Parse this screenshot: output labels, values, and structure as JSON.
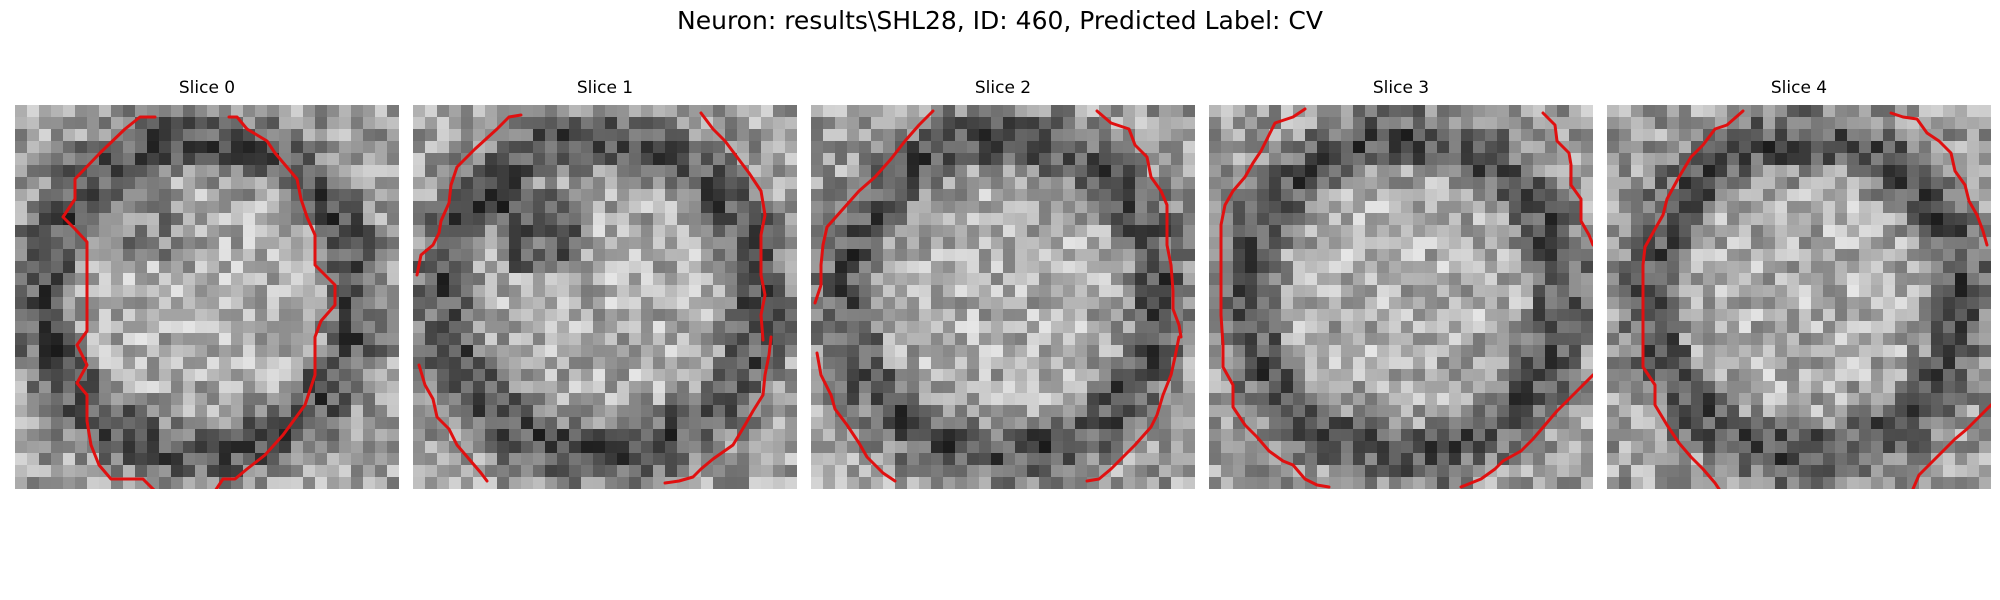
{
  "figure": {
    "title": "Neuron: results\\SHL28, ID: 460, Predicted Label: CV",
    "contour_color": "#e01010",
    "panels": [
      {
        "title": "Slice 0"
      },
      {
        "title": "Slice 1"
      },
      {
        "title": "Slice 2"
      },
      {
        "title": "Slice 3"
      },
      {
        "title": "Slice 4"
      }
    ]
  }
}
